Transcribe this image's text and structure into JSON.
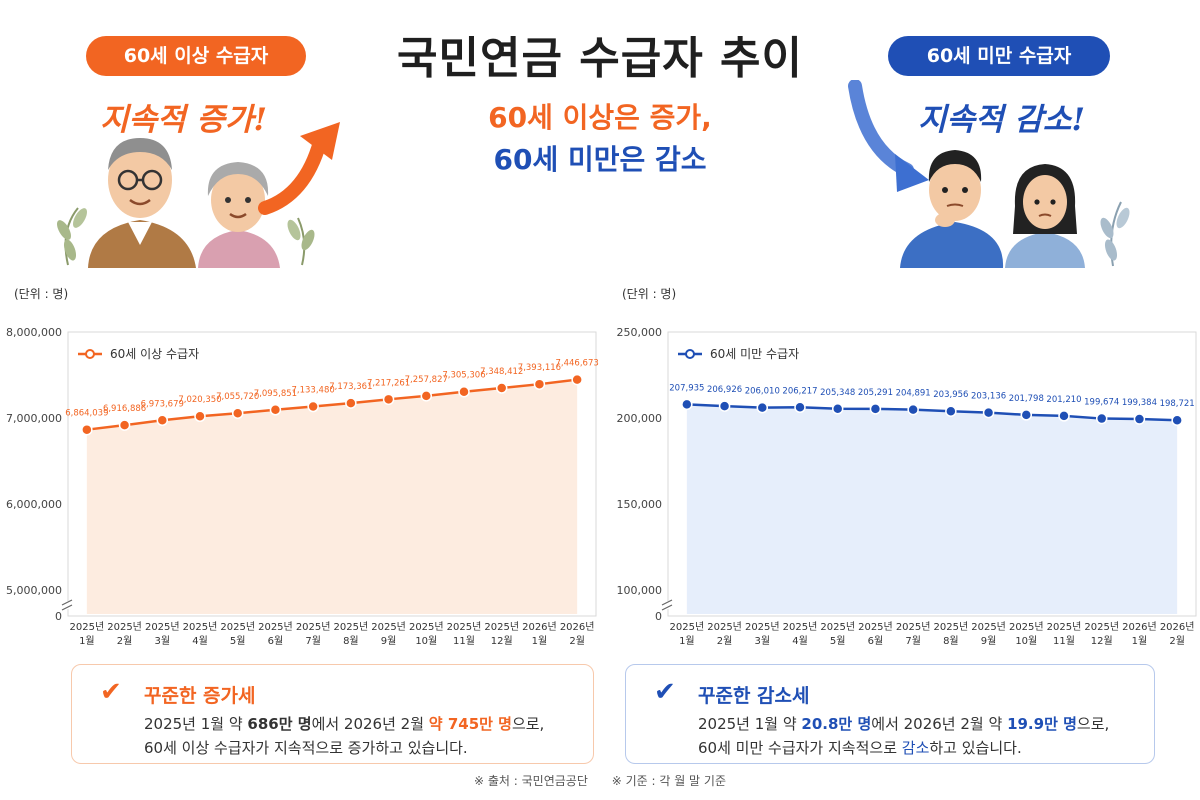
{
  "header": {
    "title": "국민연금 수급자 추이",
    "left_pill": "60세 이상 수급자",
    "left_slogan": "지속적 증가!",
    "right_pill": "60세 미만 수급자",
    "right_slogan": "지속적 감소!",
    "sub_line1": "60세 이상은 증가,",
    "sub_line2": "60세 미만은 감소"
  },
  "colors": {
    "orange": "#f26522",
    "blue": "#1f4fb5"
  },
  "chart_data": [
    {
      "type": "line",
      "unit_label": "(단위 : 명)",
      "categories": [
        [
          "2025년",
          "1월"
        ],
        [
          "2025년",
          "2월"
        ],
        [
          "2025년",
          "3월"
        ],
        [
          "2025년",
          "4월"
        ],
        [
          "2025년",
          "5월"
        ],
        [
          "2025년",
          "6월"
        ],
        [
          "2025년",
          "7월"
        ],
        [
          "2025년",
          "8월"
        ],
        [
          "2025년",
          "9월"
        ],
        [
          "2025년",
          "10월"
        ],
        [
          "2025년",
          "11월"
        ],
        [
          "2025년",
          "12월"
        ],
        [
          "2026년",
          "1월"
        ],
        [
          "2026년",
          "2월"
        ]
      ],
      "series": [
        {
          "name": "60세 이상 수급자",
          "values": [
            6864039,
            6916886,
            6973679,
            7020350,
            7055720,
            7095851,
            7133480,
            7173361,
            7217261,
            7257827,
            7305306,
            7348412,
            7393116,
            7446673
          ],
          "labels": [
            "6,864,039",
            "6,916,886",
            "6,973,679",
            "7,020,350",
            "7,055,720",
            "7,095,851",
            "7,133,480",
            "7,173,361",
            "7,217,261",
            "7,257,827",
            "7,305,306",
            "7,348,412",
            "7,393,116",
            "7,446,673"
          ]
        }
      ],
      "y_ticks": [
        "8,000,000",
        "7,000,000",
        "6,000,000",
        "5,000,000",
        "0"
      ],
      "ylim": [
        5000000,
        8000000
      ],
      "axis_break": true,
      "grid": false,
      "legend_position": "top-left"
    },
    {
      "type": "line",
      "unit_label": "(단위 : 명)",
      "categories": [
        [
          "2025년",
          "1월"
        ],
        [
          "2025년",
          "2월"
        ],
        [
          "2025년",
          "3월"
        ],
        [
          "2025년",
          "4월"
        ],
        [
          "2025년",
          "5월"
        ],
        [
          "2025년",
          "6월"
        ],
        [
          "2025년",
          "7월"
        ],
        [
          "2025년",
          "8월"
        ],
        [
          "2025년",
          "9월"
        ],
        [
          "2025년",
          "10월"
        ],
        [
          "2025년",
          "11월"
        ],
        [
          "2025년",
          "12월"
        ],
        [
          "2026년",
          "1월"
        ],
        [
          "2026년",
          "2월"
        ]
      ],
      "series": [
        {
          "name": "60세 미만 수급자",
          "values": [
            207935,
            206926,
            206010,
            206217,
            205348,
            205291,
            204891,
            203956,
            203136,
            201798,
            201210,
            199674,
            199384,
            198721
          ],
          "labels": [
            "207,935",
            "206,926",
            "206,010",
            "206,217",
            "205,348",
            "205,291",
            "204,891",
            "203,956",
            "203,136",
            "201,798",
            "201,210",
            "199,674",
            "199,384",
            "198,721"
          ]
        }
      ],
      "y_ticks": [
        "250,000",
        "200,000",
        "150,000",
        "100,000",
        "0"
      ],
      "ylim": [
        100000,
        250000
      ],
      "axis_break": true,
      "grid": false,
      "legend_position": "top-left"
    }
  ],
  "summary_left": {
    "title": "꾸준한 증가세",
    "l1_a": "2025년 1월 약 ",
    "l1_b": "686만 명",
    "l1_c": "에서 2026년 2월 ",
    "l1_d": "약 745만 명",
    "l1_e": "으로,",
    "l2_a": "60세 이상 수급자가 지속적으로 증가하고 있습니다."
  },
  "summary_right": {
    "title": "꾸준한 감소세",
    "l1_a": "2025년 1월 약 ",
    "l1_b": "20.8만 명",
    "l1_c": "에서 2026년 2월 약 ",
    "l1_d": "19.9만 명",
    "l1_e": "으로,",
    "l2_a": "60세 미만 수급자가 지속적으로 ",
    "l2_b": "감소",
    "l2_c": "하고 있습니다."
  },
  "footer": {
    "source": "※ 출처 : 국민연금공단",
    "basis": "※ 기준 : 각 월 말 기준"
  },
  "icons": {
    "check": "checkmark-icon",
    "arrow_up": "arrow-up-right-icon",
    "arrow_down": "arrow-down-right-icon"
  }
}
